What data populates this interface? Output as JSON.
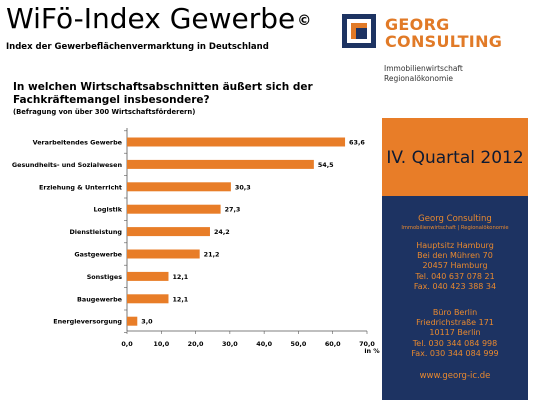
{
  "header": {
    "title": "WiFö-Index Gewerbe",
    "title_mark": "©",
    "subtitle": "Index der Gewerbeflächenvermarktung in Deutschland"
  },
  "logo": {
    "brand_line1": "GEORG",
    "brand_line2": "CONSULTING",
    "tag_line1": "Immobilienwirtschaft",
    "tag_line2": "Regionalökonomie",
    "colors": {
      "orange": "#e17a27",
      "navy": "#1d3362"
    }
  },
  "question": {
    "line1": "In welchen Wirtschaftsabschnitten äußert sich der",
    "line2": "Fachkräftemangel insbesondere?",
    "note": "(Befragung von über 300 Wirtschaftsförderern)"
  },
  "quarter": "IV. Quartal 2012",
  "contact": {
    "name": "Georg Consulting",
    "sub": "Immobilienwirtschaft | Regionalökonomie",
    "hq": [
      "Hauptsitz Hamburg",
      "Bei den Mühren 70",
      "20457 Hamburg",
      "Tel. 040 637 078 21",
      "Fax. 040 423 388 34"
    ],
    "branch": [
      "Büro Berlin",
      "Friedrichstraße 171",
      "10117 Berlin",
      "Tel. 030 344 084 998",
      "Fax. 030 344 084 999"
    ],
    "web": "www.georg-ic.de"
  },
  "chart_data": {
    "type": "bar",
    "orientation": "horizontal",
    "categories": [
      "Verarbeitendes Gewerbe",
      "Gesundheits- und Sozialwesen",
      "Erziehung & Unterricht",
      "Logistik",
      "Dienstleistung",
      "Gastgewerbe",
      "Sonstiges",
      "Baugewerbe",
      "Energieversorgung"
    ],
    "values": [
      63.6,
      54.5,
      30.3,
      27.3,
      24.2,
      21.2,
      12.1,
      12.1,
      3.0
    ],
    "value_labels": [
      "63,6",
      "54,5",
      "30,3",
      "27,3",
      "24,2",
      "21,2",
      "12,1",
      "12,1",
      "3,0"
    ],
    "xlim": [
      0,
      70
    ],
    "ticks": [
      "0,0",
      "10,0",
      "20,0",
      "30,0",
      "40,0",
      "50,0",
      "60,0",
      "70,0"
    ],
    "xlabel": "in %",
    "bar_color": "#e87d28",
    "grid": false
  }
}
